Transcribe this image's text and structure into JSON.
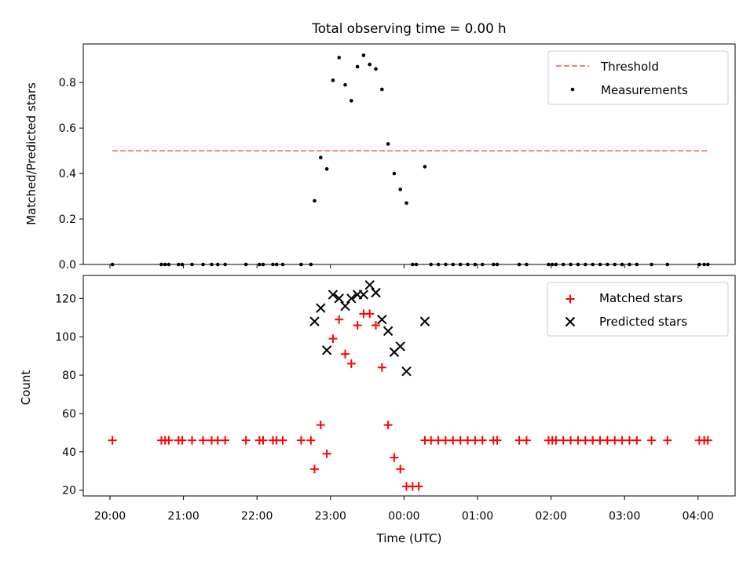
{
  "chart_data": [
    {
      "type": "scatter",
      "title": "Total observing time = 0.00 h",
      "xlabel": "",
      "ylabel": "Matched/Predicted stars",
      "ylim": [
        0,
        0.97
      ],
      "yticks": [
        "0.0",
        "0.2",
        "0.4",
        "0.6",
        "0.8"
      ],
      "grid": false,
      "legend_position": "top-right",
      "threshold": {
        "name": "Threshold",
        "y": 0.5,
        "x_start": "20:02",
        "x_end": "04:08",
        "color": "#ff7f7f",
        "style": "dashed"
      },
      "series": [
        {
          "name": "Measurements",
          "color": "#000000",
          "marker": "dot",
          "points": [
            [
              "20:02",
              0
            ],
            [
              "20:42",
              0
            ],
            [
              "20:45",
              0
            ],
            [
              "20:48",
              0
            ],
            [
              "20:56",
              0
            ],
            [
              "20:59",
              0
            ],
            [
              "21:07",
              0
            ],
            [
              "21:16",
              0
            ],
            [
              "21:23",
              0
            ],
            [
              "21:28",
              0
            ],
            [
              "21:34",
              0
            ],
            [
              "21:51",
              0
            ],
            [
              "22:02",
              0
            ],
            [
              "22:05",
              0
            ],
            [
              "22:13",
              0
            ],
            [
              "22:16",
              0
            ],
            [
              "22:21",
              0
            ],
            [
              "22:36",
              0
            ],
            [
              "22:44",
              0
            ],
            [
              "22:47",
              0.28
            ],
            [
              "22:52",
              0.47
            ],
            [
              "22:57",
              0.42
            ],
            [
              "23:02",
              0.81
            ],
            [
              "23:07",
              0.91
            ],
            [
              "23:12",
              0.79
            ],
            [
              "23:17",
              0.72
            ],
            [
              "23:22",
              0.87
            ],
            [
              "23:27",
              0.92
            ],
            [
              "23:32",
              0.88
            ],
            [
              "23:37",
              0.86
            ],
            [
              "23:42",
              0.77
            ],
            [
              "23:47",
              0.53
            ],
            [
              "23:52",
              0.4
            ],
            [
              "23:57",
              0.33
            ],
            [
              "00:02",
              0.27
            ],
            [
              "00:17",
              0.43
            ],
            [
              "00:07",
              0
            ],
            [
              "00:10",
              0
            ],
            [
              "00:22",
              0
            ],
            [
              "00:28",
              0
            ],
            [
              "00:34",
              0
            ],
            [
              "00:40",
              0
            ],
            [
              "00:46",
              0
            ],
            [
              "00:52",
              0
            ],
            [
              "00:58",
              0
            ],
            [
              "01:04",
              0
            ],
            [
              "01:13",
              0
            ],
            [
              "01:16",
              0
            ],
            [
              "01:34",
              0
            ],
            [
              "01:40",
              0
            ],
            [
              "01:58",
              0
            ],
            [
              "02:01",
              0
            ],
            [
              "02:04",
              0
            ],
            [
              "02:10",
              0
            ],
            [
              "02:16",
              0
            ],
            [
              "02:22",
              0
            ],
            [
              "02:28",
              0
            ],
            [
              "02:34",
              0
            ],
            [
              "02:40",
              0
            ],
            [
              "02:46",
              0
            ],
            [
              "02:52",
              0
            ],
            [
              "02:58",
              0
            ],
            [
              "03:04",
              0
            ],
            [
              "03:10",
              0
            ],
            [
              "03:22",
              0
            ],
            [
              "03:35",
              0
            ],
            [
              "04:01",
              0
            ],
            [
              "04:05",
              0
            ],
            [
              "04:08",
              0
            ]
          ]
        }
      ]
    },
    {
      "type": "scatter",
      "title": "",
      "xlabel": "Time (UTC)",
      "ylabel": "Count",
      "ylim": [
        17,
        132
      ],
      "yticks": [
        "20",
        "40",
        "60",
        "80",
        "100",
        "120"
      ],
      "xticks": [
        "20:00",
        "21:00",
        "22:00",
        "23:00",
        "00:00",
        "01:00",
        "02:00",
        "03:00",
        "04:00"
      ],
      "grid": false,
      "legend_position": "top-right",
      "series": [
        {
          "name": "Matched stars",
          "color": "#ff0000",
          "marker": "plus",
          "points": [
            [
              "20:02",
              46
            ],
            [
              "20:42",
              46
            ],
            [
              "20:45",
              46
            ],
            [
              "20:48",
              46
            ],
            [
              "20:56",
              46
            ],
            [
              "20:59",
              46
            ],
            [
              "21:07",
              46
            ],
            [
              "21:16",
              46
            ],
            [
              "21:23",
              46
            ],
            [
              "21:28",
              46
            ],
            [
              "21:34",
              46
            ],
            [
              "21:51",
              46
            ],
            [
              "22:02",
              46
            ],
            [
              "22:05",
              46
            ],
            [
              "22:13",
              46
            ],
            [
              "22:16",
              46
            ],
            [
              "22:21",
              46
            ],
            [
              "22:36",
              46
            ],
            [
              "22:44",
              46
            ],
            [
              "22:47",
              31
            ],
            [
              "22:52",
              54
            ],
            [
              "22:57",
              39
            ],
            [
              "23:02",
              99
            ],
            [
              "23:07",
              109
            ],
            [
              "23:12",
              91
            ],
            [
              "23:17",
              86
            ],
            [
              "23:22",
              106
            ],
            [
              "23:27",
              112
            ],
            [
              "23:32",
              112
            ],
            [
              "23:37",
              106
            ],
            [
              "23:42",
              84
            ],
            [
              "23:47",
              54
            ],
            [
              "23:52",
              37
            ],
            [
              "23:57",
              31
            ],
            [
              "00:02",
              22
            ],
            [
              "00:07",
              22
            ],
            [
              "00:12",
              22
            ],
            [
              "00:17",
              46
            ],
            [
              "00:22",
              46
            ],
            [
              "00:28",
              46
            ],
            [
              "00:34",
              46
            ],
            [
              "00:40",
              46
            ],
            [
              "00:46",
              46
            ],
            [
              "00:52",
              46
            ],
            [
              "00:58",
              46
            ],
            [
              "01:04",
              46
            ],
            [
              "01:13",
              46
            ],
            [
              "01:16",
              46
            ],
            [
              "01:34",
              46
            ],
            [
              "01:40",
              46
            ],
            [
              "01:58",
              46
            ],
            [
              "02:01",
              46
            ],
            [
              "02:04",
              46
            ],
            [
              "02:10",
              46
            ],
            [
              "02:16",
              46
            ],
            [
              "02:22",
              46
            ],
            [
              "02:28",
              46
            ],
            [
              "02:34",
              46
            ],
            [
              "02:40",
              46
            ],
            [
              "02:46",
              46
            ],
            [
              "02:52",
              46
            ],
            [
              "02:58",
              46
            ],
            [
              "03:04",
              46
            ],
            [
              "03:10",
              46
            ],
            [
              "03:22",
              46
            ],
            [
              "03:35",
              46
            ],
            [
              "04:01",
              46
            ],
            [
              "04:05",
              46
            ],
            [
              "04:08",
              46
            ]
          ]
        },
        {
          "name": "Predicted stars",
          "color": "#000000",
          "marker": "x",
          "points": [
            [
              "22:47",
              108
            ],
            [
              "22:52",
              115
            ],
            [
              "22:57",
              93
            ],
            [
              "23:02",
              122
            ],
            [
              "23:07",
              120
            ],
            [
              "23:12",
              116
            ],
            [
              "23:17",
              120
            ],
            [
              "23:22",
              122
            ],
            [
              "23:27",
              122
            ],
            [
              "23:32",
              127
            ],
            [
              "23:37",
              123
            ],
            [
              "23:42",
              109
            ],
            [
              "23:47",
              103
            ],
            [
              "23:52",
              92
            ],
            [
              "23:57",
              95
            ],
            [
              "00:02",
              82
            ],
            [
              "00:17",
              108
            ]
          ]
        }
      ]
    }
  ]
}
